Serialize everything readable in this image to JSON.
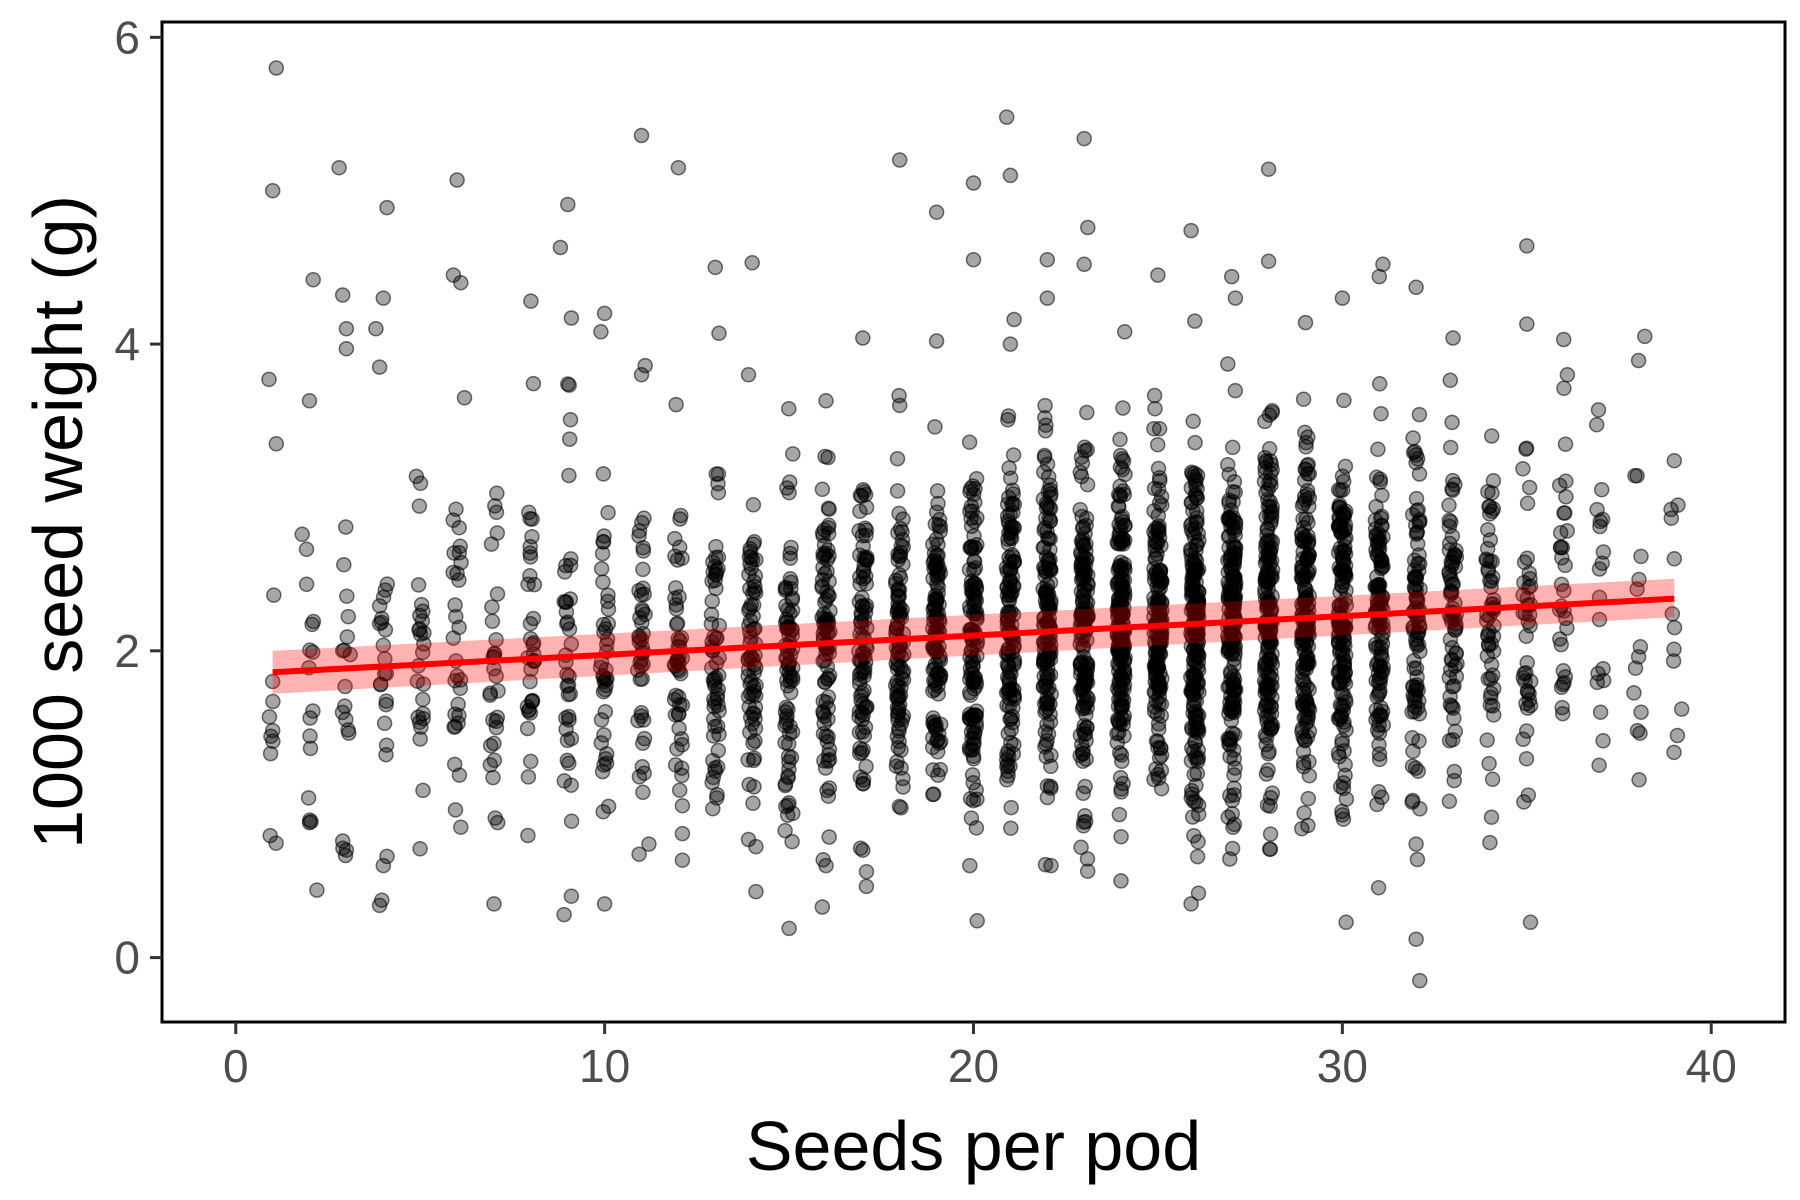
{
  "chart_data": {
    "type": "scatter",
    "title": "",
    "xlabel": "Seeds per pod",
    "ylabel": "1000 seed weight (g)",
    "xlim": [
      -2,
      42
    ],
    "ylim": [
      -0.42,
      6.1
    ],
    "x_ticks": [
      0,
      10,
      20,
      30,
      40
    ],
    "y_ticks": [
      0,
      2,
      4,
      6
    ],
    "x_tick_labels": [
      "0",
      "10",
      "20",
      "30",
      "40"
    ],
    "y_tick_labels": [
      "0",
      "2",
      "4",
      "6"
    ],
    "grid": false,
    "legend": "none",
    "point_color": "#000000",
    "point_alpha": 0.35,
    "trend_color": "#ff0000",
    "band_color": "#ff0000",
    "band_alpha": 0.3,
    "trend": {
      "x": [
        1,
        39
      ],
      "y": [
        1.86,
        2.34
      ],
      "band_lower": [
        1.72,
        2.22
      ],
      "band_upper": [
        2.0,
        2.47
      ]
    },
    "counts_per_x": [
      [
        1,
        8
      ],
      [
        2,
        14
      ],
      [
        3,
        16
      ],
      [
        4,
        20
      ],
      [
        5,
        26
      ],
      [
        6,
        28
      ],
      [
        7,
        28
      ],
      [
        8,
        34
      ],
      [
        9,
        36
      ],
      [
        10,
        40
      ],
      [
        11,
        42
      ],
      [
        12,
        50
      ],
      [
        13,
        60
      ],
      [
        14,
        70
      ],
      [
        15,
        78
      ],
      [
        16,
        88
      ],
      [
        17,
        90
      ],
      [
        18,
        95
      ],
      [
        19,
        110
      ],
      [
        20,
        125
      ],
      [
        21,
        130
      ],
      [
        22,
        140
      ],
      [
        23,
        150
      ],
      [
        24,
        180
      ],
      [
        25,
        160
      ],
      [
        26,
        190
      ],
      [
        27,
        180
      ],
      [
        28,
        175
      ],
      [
        29,
        160
      ],
      [
        30,
        150
      ],
      [
        31,
        120
      ],
      [
        32,
        90
      ],
      [
        33,
        70
      ],
      [
        34,
        55
      ],
      [
        35,
        40
      ],
      [
        36,
        30
      ],
      [
        37,
        18
      ],
      [
        38,
        12
      ],
      [
        39,
        8
      ]
    ],
    "outliers": [
      [
        1.1,
        5.8
      ],
      [
        1,
        5.0
      ],
      [
        0.9,
        3.77
      ],
      [
        1.1,
        3.35
      ],
      [
        1.0,
        1.8
      ],
      [
        1.0,
        1.48
      ],
      [
        2.8,
        5.15
      ],
      [
        2.9,
        4.32
      ],
      [
        3.0,
        4.1
      ],
      [
        3.0,
        3.97
      ],
      [
        2.1,
        4.42
      ],
      [
        2.0,
        3.63
      ],
      [
        1.8,
        2.76
      ],
      [
        2.0,
        0.88
      ],
      [
        2.2,
        0.44
      ],
      [
        3.0,
        0.7
      ],
      [
        2.9,
        0.76
      ],
      [
        4.1,
        4.89
      ],
      [
        3.8,
        4.1
      ],
      [
        4.0,
        4.3
      ],
      [
        3.9,
        3.85
      ],
      [
        3.9,
        0.34
      ],
      [
        4.0,
        0.6
      ],
      [
        4.1,
        0.66
      ],
      [
        6.0,
        5.07
      ],
      [
        5.9,
        4.45
      ],
      [
        6.1,
        4.4
      ],
      [
        6.2,
        3.65
      ],
      [
        6.1,
        0.85
      ],
      [
        7.0,
        0.35
      ],
      [
        7.1,
        0.88
      ],
      [
        8.0,
        4.28
      ],
      [
        9.0,
        4.91
      ],
      [
        8.8,
        4.63
      ],
      [
        9.1,
        4.17
      ],
      [
        9.0,
        3.74
      ],
      [
        8.9,
        0.28
      ],
      [
        9.1,
        0.4
      ],
      [
        10.0,
        4.2
      ],
      [
        9.9,
        4.08
      ],
      [
        10.0,
        0.35
      ],
      [
        11.0,
        5.36
      ],
      [
        12.0,
        5.15
      ],
      [
        11.1,
        3.86
      ],
      [
        11.0,
        3.8
      ],
      [
        11.2,
        0.74
      ],
      [
        13.0,
        4.5
      ],
      [
        13.1,
        4.07
      ],
      [
        14.0,
        4.53
      ],
      [
        13.9,
        3.8
      ],
      [
        14.1,
        0.43
      ],
      [
        13.9,
        0.77
      ],
      [
        15.0,
        0.19
      ],
      [
        15.1,
        0.94
      ],
      [
        16.0,
        3.63
      ],
      [
        15.9,
        0.33
      ],
      [
        16.0,
        0.6
      ],
      [
        17.0,
        4.04
      ],
      [
        17.1,
        0.56
      ],
      [
        17.0,
        0.7
      ],
      [
        18.0,
        5.2
      ],
      [
        18.0,
        3.6
      ],
      [
        19.0,
        4.86
      ],
      [
        19.0,
        4.02
      ],
      [
        20.0,
        5.05
      ],
      [
        20.0,
        4.55
      ],
      [
        20.1,
        0.24
      ],
      [
        19.9,
        0.6
      ],
      [
        20.9,
        5.48
      ],
      [
        21.0,
        5.1
      ],
      [
        21.1,
        4.16
      ],
      [
        21.0,
        4.0
      ],
      [
        22.0,
        4.55
      ],
      [
        22.0,
        4.3
      ],
      [
        22.1,
        0.6
      ],
      [
        23.0,
        5.34
      ],
      [
        23.1,
        4.76
      ],
      [
        23.0,
        4.52
      ],
      [
        24.0,
        0.5
      ],
      [
        24.1,
        4.08
      ],
      [
        25.0,
        4.45
      ],
      [
        25.9,
        4.74
      ],
      [
        26.0,
        4.15
      ],
      [
        26.1,
        0.42
      ],
      [
        25.9,
        0.35
      ],
      [
        27.0,
        4.44
      ],
      [
        27.1,
        4.3
      ],
      [
        28.0,
        5.14
      ],
      [
        28.0,
        4.54
      ],
      [
        29.0,
        4.14
      ],
      [
        28.9,
        0.84
      ],
      [
        30.0,
        4.3
      ],
      [
        30.1,
        0.23
      ],
      [
        30.0,
        0.93
      ],
      [
        31.0,
        4.44
      ],
      [
        31.1,
        4.52
      ],
      [
        32.0,
        4.37
      ],
      [
        32.0,
        0.12
      ],
      [
        32.1,
        -0.15
      ],
      [
        32.0,
        0.74
      ],
      [
        32.1,
        0.97
      ],
      [
        33.0,
        4.04
      ],
      [
        34.0,
        0.75
      ],
      [
        35.0,
        4.64
      ],
      [
        35.1,
        0.23
      ],
      [
        35.0,
        4.13
      ],
      [
        36.0,
        4.03
      ],
      [
        36.1,
        3.8
      ],
      [
        37.0,
        1.6
      ],
      [
        38.2,
        4.05
      ],
      [
        38.0,
        1.48
      ],
      [
        38.1,
        1.6
      ],
      [
        39.0,
        3.24
      ],
      [
        39.1,
        2.95
      ],
      [
        39.2,
        1.62
      ],
      [
        39.0,
        2.6
      ]
    ]
  }
}
